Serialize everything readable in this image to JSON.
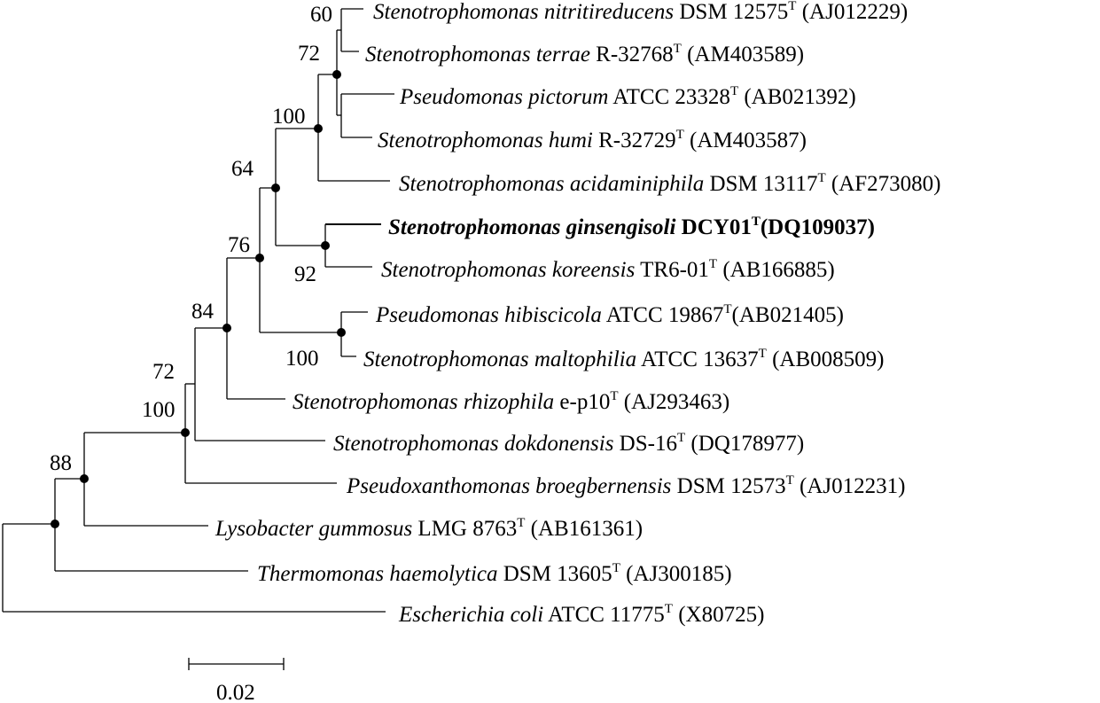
{
  "taxa": [
    {
      "id": "t1",
      "genus_species": "Stenotrophomonas nitritireducens",
      "strain": "DSM 12575",
      "sup": "T",
      "accession": "(AJ012229)",
      "bold": false
    },
    {
      "id": "t2",
      "genus_species": "Stenotrophomonas terrae",
      "strain": "R-32768",
      "sup": "T",
      "accession": "(AM403589)",
      "bold": false
    },
    {
      "id": "t3",
      "genus_species": "Pseudomonas pictorum",
      "strain": "ATCC 23328",
      "sup": "T",
      "accession": "(AB021392)",
      "bold": false
    },
    {
      "id": "t4",
      "genus_species": "Stenotrophomonas humi",
      "strain": "R-32729",
      "sup": "T",
      "accession": "(AM403587)",
      "bold": false
    },
    {
      "id": "t5",
      "genus_species": "Stenotrophomonas acidaminiphila",
      "strain": "DSM 13117",
      "sup": "T",
      "accession": "(AF273080)",
      "bold": false
    },
    {
      "id": "t6",
      "genus_species": "Stenotrophomonas ginsengisoli",
      "strain": "DCY01",
      "sup": "T",
      "accession": "(DQ109037)",
      "bold": true
    },
    {
      "id": "t7",
      "genus_species": "Stenotrophomonas koreensis",
      "strain": "TR6-01",
      "sup": "T",
      "accession": "(AB166885)",
      "bold": false
    },
    {
      "id": "t8",
      "genus_species": "Pseudomonas hibiscicola",
      "strain": "ATCC 19867",
      "sup": "T",
      "accession": "(AB021405)",
      "bold": false
    },
    {
      "id": "t9",
      "genus_species": "Stenotrophomonas maltophilia",
      "strain": "ATCC 13637",
      "sup": "T",
      "accession": "(AB008509)",
      "bold": false
    },
    {
      "id": "t10",
      "genus_species": "Stenotrophomonas rhizophila",
      "strain": "e-p10",
      "sup": "T",
      "accession": "(AJ293463)",
      "bold": false
    },
    {
      "id": "t11",
      "genus_species": "Stenotrophomonas dokdonensis",
      "strain": "DS-16",
      "sup": "T",
      "accession": "(DQ178977)",
      "bold": false
    },
    {
      "id": "t12",
      "genus_species": "Pseudoxanthomonas broegbernensis",
      "strain": "DSM 12573",
      "sup": "T",
      "accession": "(AJ012231)",
      "bold": false
    },
    {
      "id": "t13",
      "genus_species": "Lysobacter gummosus",
      "strain": "LMG 8763",
      "sup": "T",
      "accession": "(AB161361)",
      "bold": false
    },
    {
      "id": "t14",
      "genus_species": "Thermomonas haemolytica",
      "strain": "DSM 13605",
      "sup": "T",
      "accession": "(AJ300185)",
      "bold": false
    },
    {
      "id": "t15",
      "genus_species": "Escherichia coli",
      "strain": "ATCC 11775",
      "sup": "T",
      "accession": "(X80725)",
      "bold": false
    }
  ],
  "bootstrap": [
    {
      "node": "n60",
      "value": "60"
    },
    {
      "node": "n72a",
      "value": "72"
    },
    {
      "node": "n100a",
      "value": "100"
    },
    {
      "node": "n64",
      "value": "64"
    },
    {
      "node": "n92",
      "value": "92"
    },
    {
      "node": "n76",
      "value": "76"
    },
    {
      "node": "n100b",
      "value": "100"
    },
    {
      "node": "n84",
      "value": "84"
    },
    {
      "node": "n72b",
      "value": "72"
    },
    {
      "node": "n100c",
      "value": "100"
    },
    {
      "node": "n88",
      "value": "88"
    }
  ],
  "scale_bar": {
    "label": "0.02"
  }
}
